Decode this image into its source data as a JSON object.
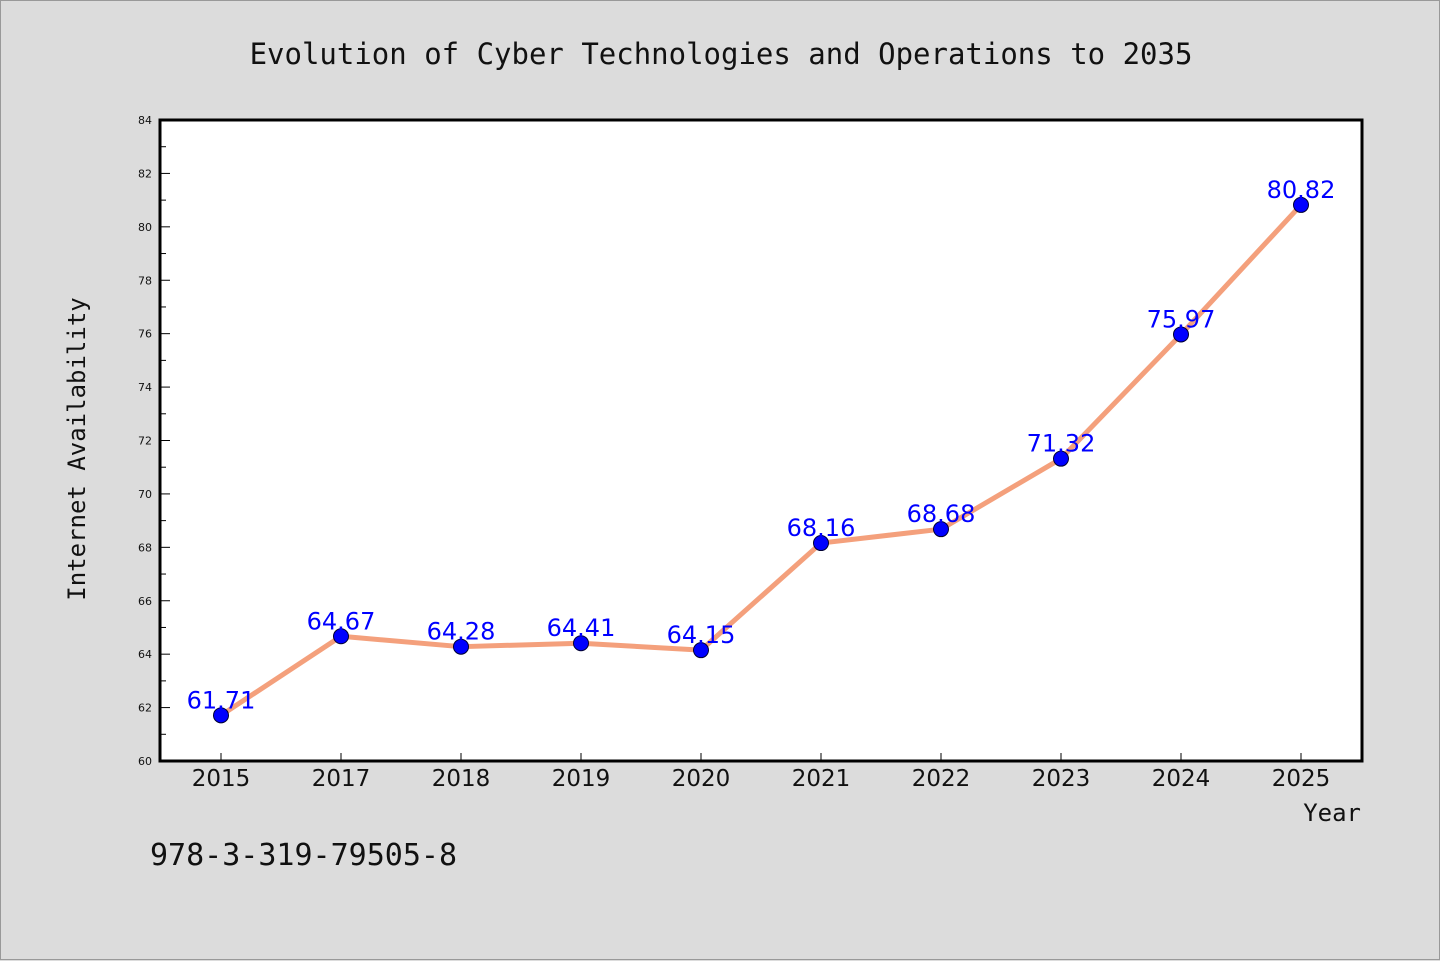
{
  "chart_data": {
    "type": "line",
    "title": "Evolution of Cyber Technologies and Operations to 2035",
    "xlabel": "Year",
    "ylabel": "Internet Availability",
    "categories": [
      "2015",
      "2017",
      "2018",
      "2019",
      "2020",
      "2021",
      "2022",
      "2023",
      "2024",
      "2025"
    ],
    "series": [
      {
        "values": [
          61.71,
          64.67,
          64.28,
          64.41,
          64.15,
          68.16,
          68.68,
          71.32,
          75.97,
          80.82
        ],
        "data_labels": [
          "61.71",
          "64.67",
          "64.28",
          "64.41",
          "64.15",
          "68.16",
          "68.68",
          "71.32",
          "75.97",
          "80.82"
        ],
        "line_color": "#f4a07c",
        "marker_color": "#0000ff"
      }
    ],
    "ylim": [
      60,
      84
    ],
    "yticks": [
      "60",
      "62",
      "64",
      "66",
      "68",
      "70",
      "72",
      "74",
      "76",
      "78",
      "80",
      "82",
      "84"
    ],
    "grid": false,
    "legend": "none",
    "plot_background": "#ffffff",
    "figure_background": "#dcdcdc"
  },
  "footnote": "978-3-319-79505-8"
}
